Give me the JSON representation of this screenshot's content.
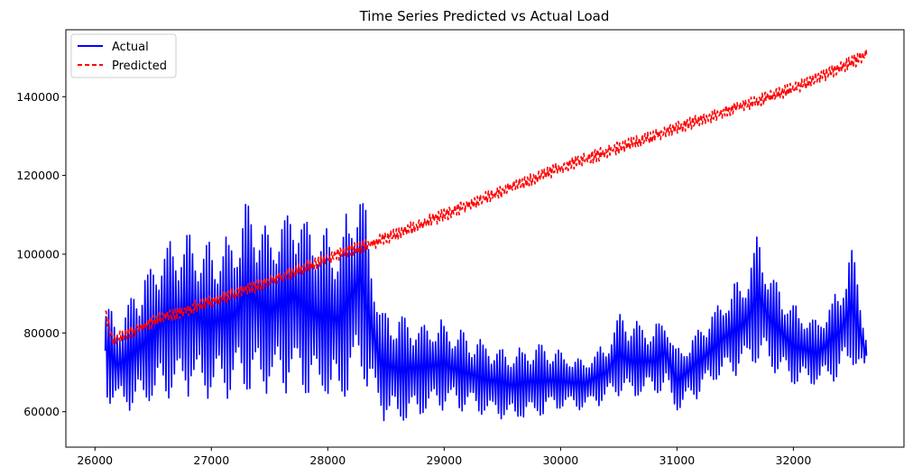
{
  "chart_data": {
    "type": "line",
    "title": "Time Series Predicted vs Actual Load",
    "xlabel": "",
    "ylabel": "",
    "xlim": [
      25750,
      32950
    ],
    "ylim": [
      51000,
      157000
    ],
    "xticks": [
      26000,
      27000,
      28000,
      29000,
      30000,
      31000,
      32000
    ],
    "yticks": [
      60000,
      80000,
      100000,
      120000,
      140000
    ],
    "legend": {
      "placement": "top-left"
    },
    "grid": false,
    "series": [
      {
        "name": "Actual",
        "color": "#0000ff",
        "style": "solid",
        "x_range": [
          26088,
          32630
        ],
        "envelope": {
          "x": [
            26090,
            26200,
            26400,
            26600,
            26800,
            27000,
            27200,
            27300,
            27500,
            27700,
            27900,
            28100,
            28280,
            28450,
            28600,
            28800,
            29000,
            29200,
            29400,
            29600,
            29800,
            30000,
            30200,
            30400,
            30500,
            30600,
            30800,
            30900,
            31000,
            31200,
            31400,
            31600,
            31700,
            31800,
            32000,
            32200,
            32400,
            32500,
            32630
          ],
          "high": [
            88000,
            84000,
            96000,
            104000,
            106000,
            104000,
            106000,
            117000,
            106000,
            116000,
            108000,
            106000,
            121000,
            88000,
            86000,
            84000,
            84000,
            80000,
            78000,
            76000,
            78000,
            76000,
            74000,
            78000,
            86000,
            84000,
            82000,
            86000,
            76000,
            82000,
            90000,
            96000,
            107000,
            96000,
            88000,
            84000,
            92000,
            104000,
            80000
          ],
          "low": [
            63000,
            60000,
            58000,
            62000,
            64000,
            62000,
            64000,
            63000,
            64000,
            64000,
            62000,
            60000,
            66000,
            58000,
            56000,
            58000,
            60000,
            60000,
            58000,
            57000,
            58000,
            60000,
            60000,
            62000,
            64000,
            62000,
            64000,
            64000,
            59000,
            64000,
            68000,
            70000,
            72000,
            70000,
            66000,
            66000,
            68000,
            70000,
            68000
          ]
        }
      },
      {
        "name": "Predicted",
        "color": "#ff0000",
        "style": "dashed",
        "x_range": [
          26088,
          32630
        ],
        "trend": {
          "x": [
            26090,
            26150,
            26500,
            27000,
            27500,
            28000,
            28500,
            29000,
            29500,
            30000,
            30500,
            31000,
            31500,
            32000,
            32630
          ],
          "y": [
            85000,
            78000,
            83000,
            88000,
            93000,
            99000,
            104000,
            110000,
            116000,
            122000,
            127000,
            132000,
            137000,
            142000,
            150500
          ]
        },
        "noise_amplitude": 1800
      }
    ]
  }
}
